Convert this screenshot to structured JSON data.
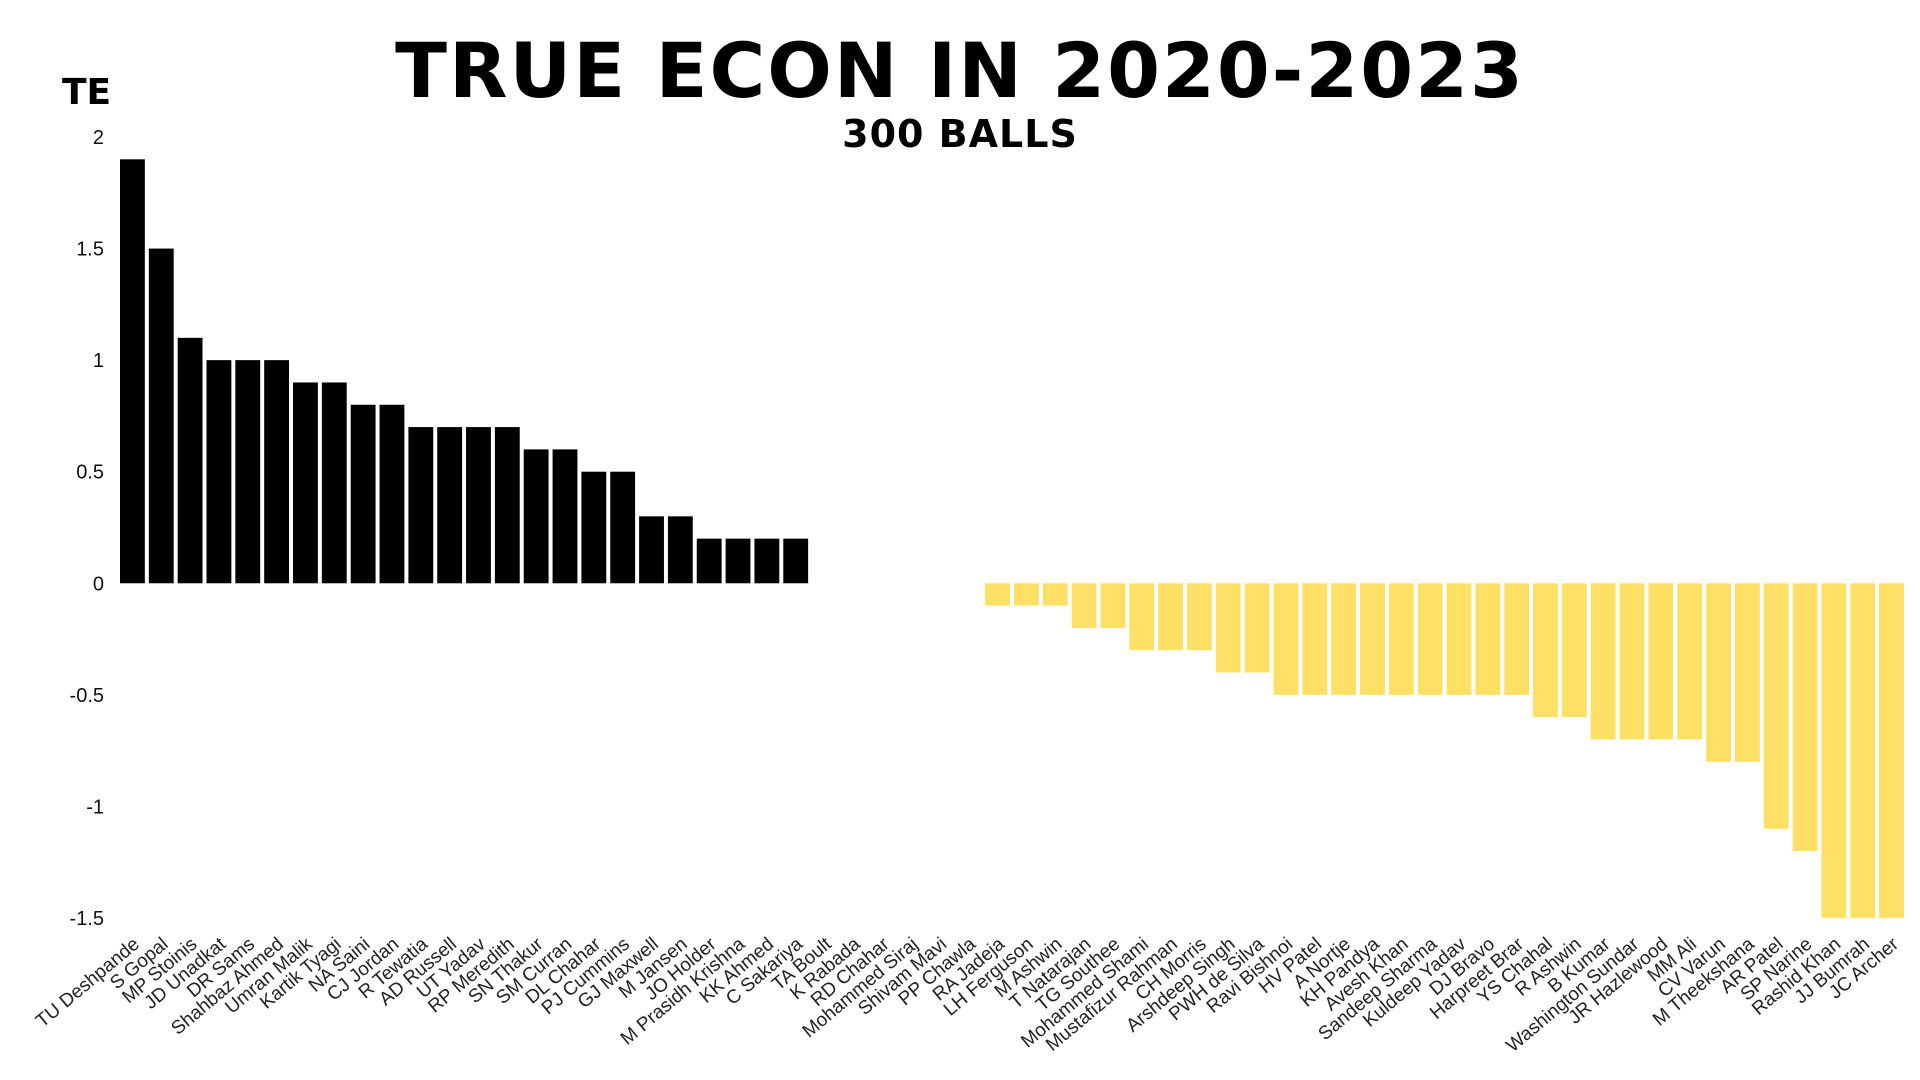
{
  "chart_data": {
    "type": "bar",
    "title": "TRUE ECON IN 2020-2023",
    "subtitle": "300 BALLS",
    "ylabel": "TE",
    "ylim": [
      -1.5,
      2
    ],
    "yticks": [
      "2",
      "1.5",
      "1",
      "0.5",
      "0",
      "-0.5",
      "-1",
      "-1.5"
    ],
    "grid": false,
    "legend": "none",
    "colors": {
      "positive": "#000000",
      "negative": "#FFE066"
    },
    "categories": [
      "TU Deshpande",
      "S Gopal",
      "MP Stoinis",
      "JD Unadkat",
      "DR Sams",
      "Shahbaz Ahmed",
      "Umran Malik",
      "Kartik Tyagi",
      "NA Saini",
      "CJ Jordan",
      "R Tewatia",
      "AD Russell",
      "UT Yadav",
      "RP Meredith",
      "SN Thakur",
      "SM Curran",
      "DL Chahar",
      "PJ Cummins",
      "GJ Maxwell",
      "M Jansen",
      "JO Holder",
      "M Prasidh Krishna",
      "KK Ahmed",
      "C Sakariya",
      "TA Boult",
      "K Rabada",
      "RD Chahar",
      "Mohammed Siraj",
      "Shivam Mavi",
      "PP Chawla",
      "RA Jadeja",
      "LH Ferguson",
      "M Ashwin",
      "T Natarajan",
      "TG Southee",
      "Mohammed Shami",
      "Mustafizur Rahman",
      "CH Morris",
      "Arshdeep Singh",
      "PWH de Silva",
      "Ravi Bishnoi",
      "HV Patel",
      "A Nortje",
      "KH Pandya",
      "Avesh Khan",
      "Sandeep Sharma",
      "Kuldeep Yadav",
      "DJ Bravo",
      "Harpreet Brar",
      "YS Chahal",
      "R Ashwin",
      "B Kumar",
      "Washington Sundar",
      "JR Hazlewood",
      "MM Ali",
      "CV Varun",
      "M Theekshana",
      "AR Patel",
      "SP Narine",
      "Rashid Khan",
      "JJ Bumrah",
      "JC Archer"
    ],
    "values": [
      1.9,
      1.5,
      1.1,
      1.0,
      1.0,
      1.0,
      0.9,
      0.9,
      0.8,
      0.8,
      0.7,
      0.7,
      0.7,
      0.7,
      0.6,
      0.6,
      0.5,
      0.5,
      0.3,
      0.3,
      0.2,
      0.2,
      0.2,
      0.2,
      0,
      0,
      0,
      0,
      0,
      0,
      -0.1,
      -0.1,
      -0.1,
      -0.2,
      -0.2,
      -0.3,
      -0.3,
      -0.3,
      -0.4,
      -0.4,
      -0.5,
      -0.5,
      -0.5,
      -0.5,
      -0.5,
      -0.5,
      -0.5,
      -0.5,
      -0.5,
      -0.6,
      -0.6,
      -0.7,
      -0.7,
      -0.7,
      -0.7,
      -0.8,
      -0.8,
      -1.1,
      -1.2,
      -1.5,
      -1.5,
      -1.5
    ]
  }
}
